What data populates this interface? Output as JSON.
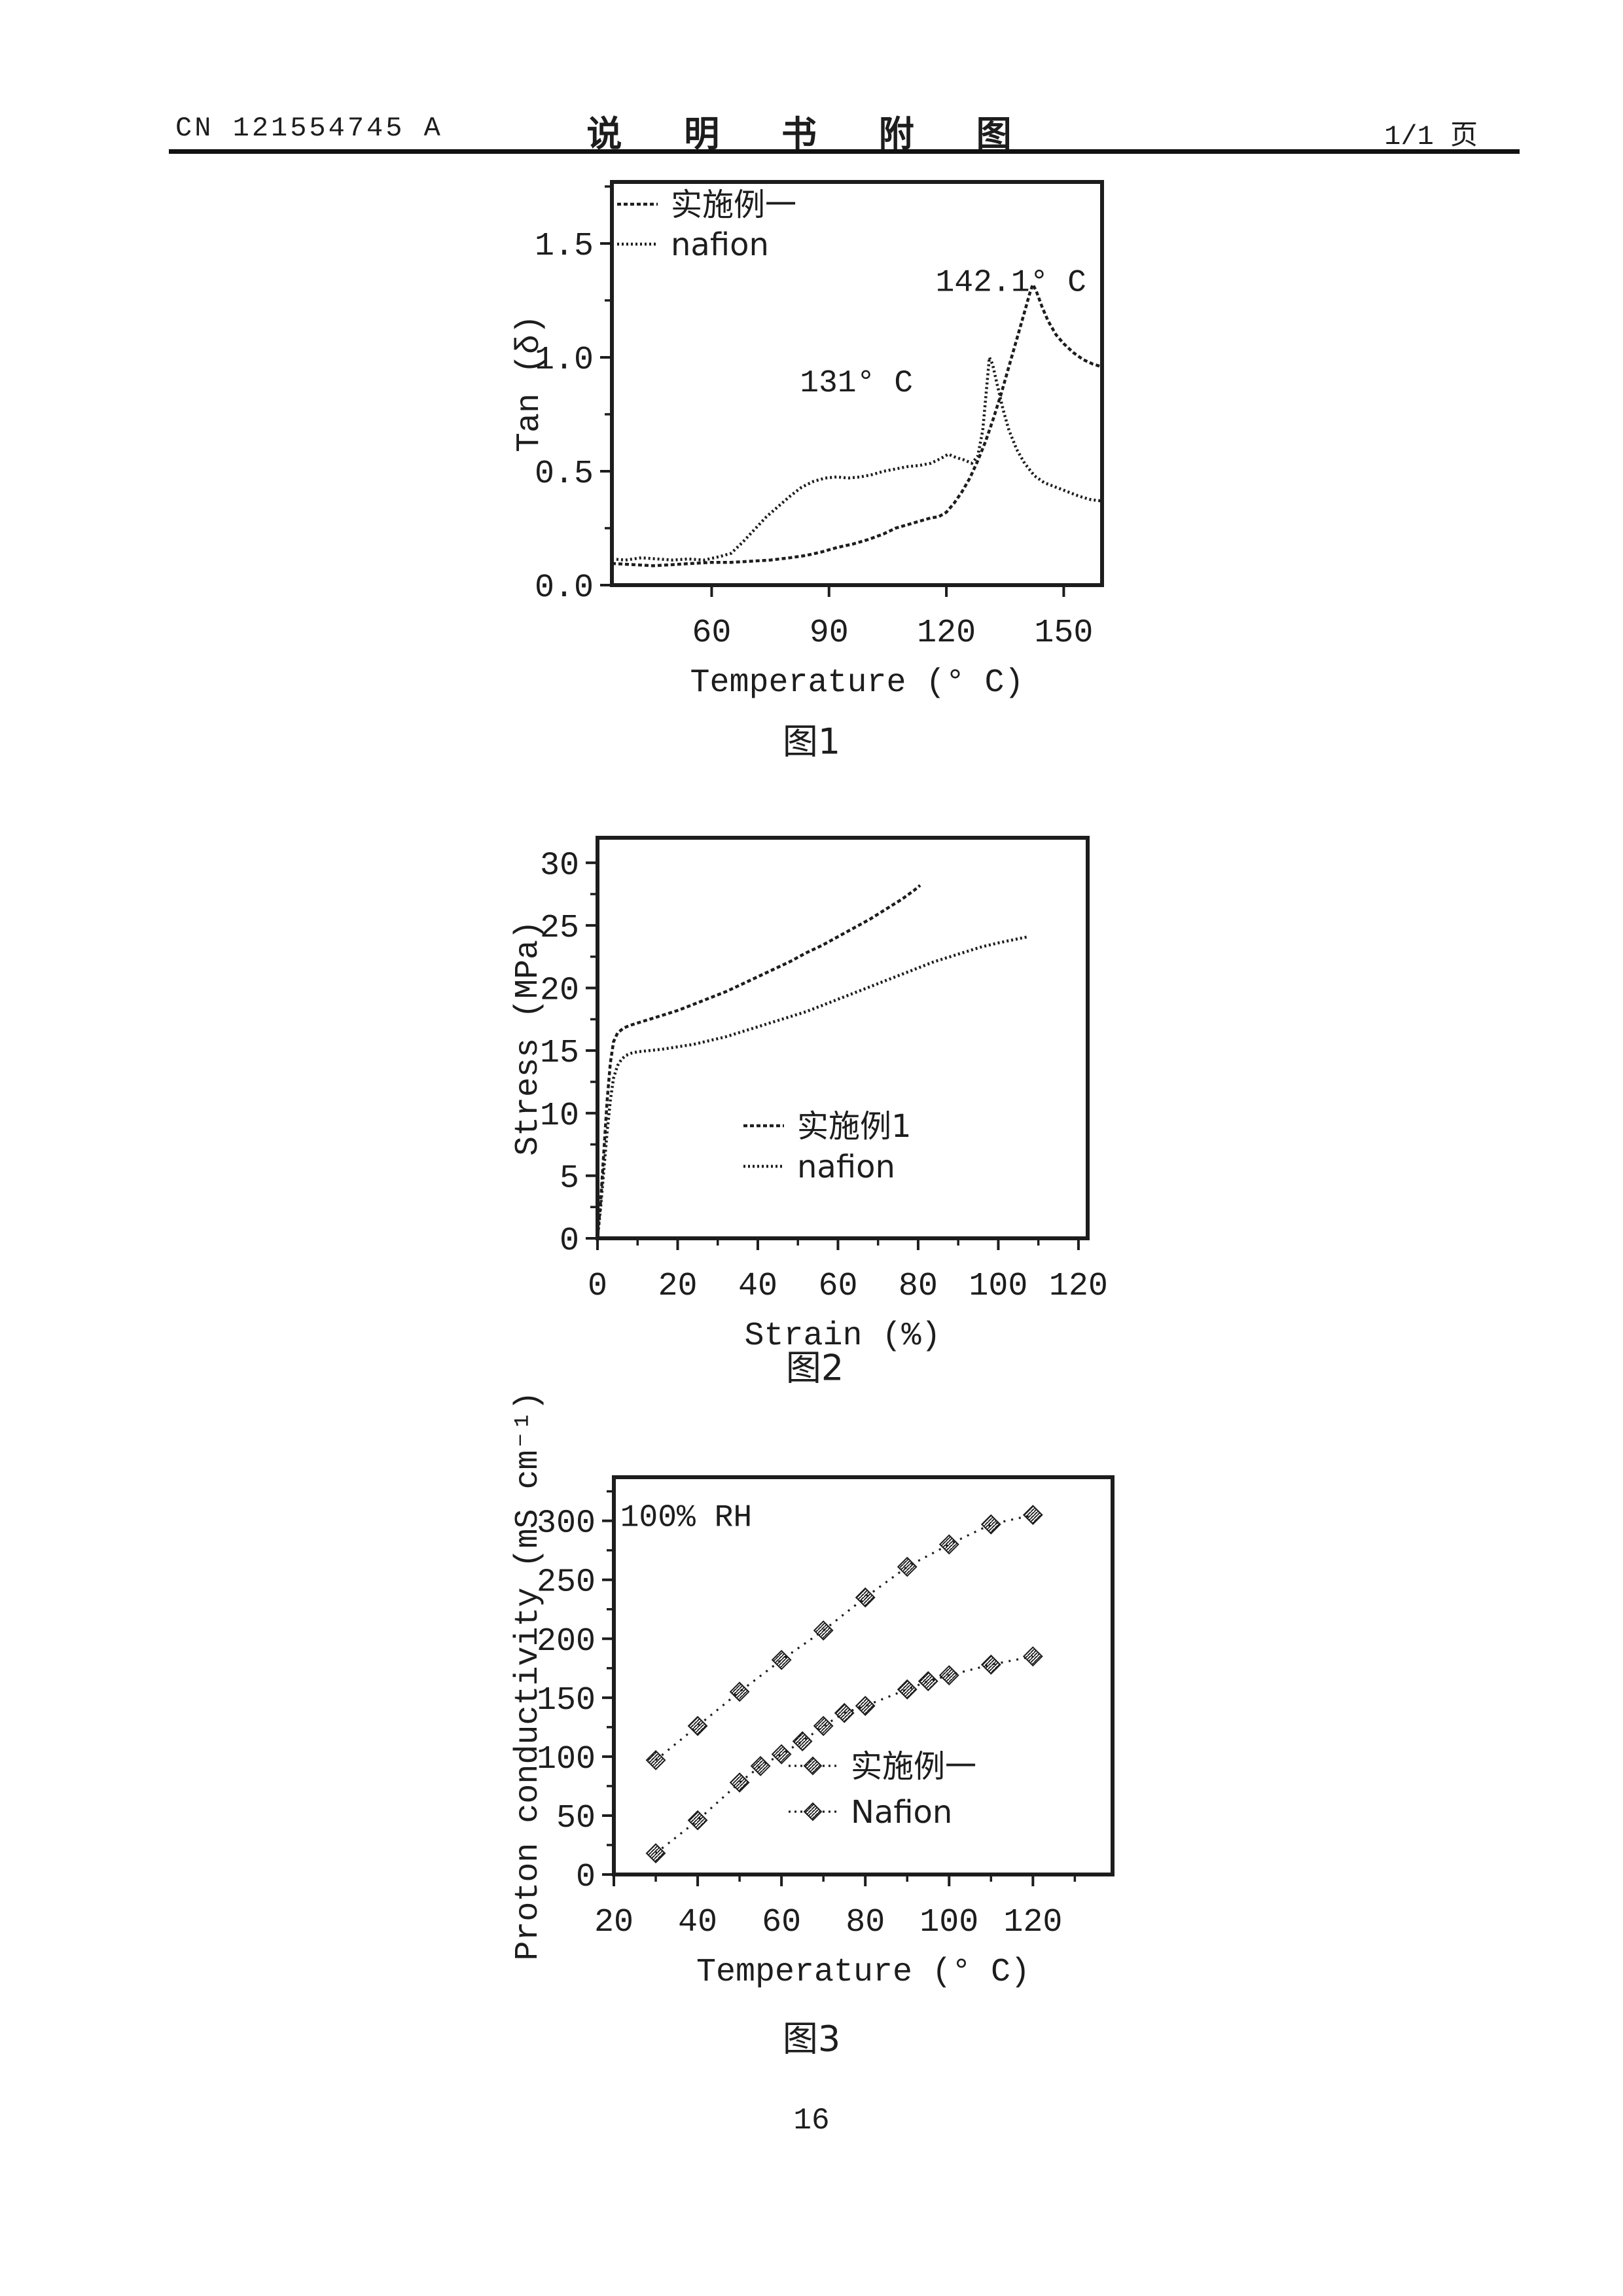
{
  "header": {
    "doc_number": "CN 121554745 A",
    "title": "说 明 书 附 图",
    "page_indicator": "1/1 页"
  },
  "figures": [
    {
      "caption": "图1"
    },
    {
      "caption": "图2"
    },
    {
      "caption": "图3"
    }
  ],
  "page_number": "16",
  "ink_color": "#1d1d1d",
  "chart_data": [
    {
      "id": "fig1",
      "type": "line",
      "title": "",
      "xlabel": "Temperature (° C)",
      "ylabel": "Tan (δ)",
      "xlim": [
        34.5,
        159.8
      ],
      "ylim": [
        0,
        1.77
      ],
      "xticks": [
        {
          "v": 60,
          "label": "60"
        },
        {
          "v": 90,
          "label": "90"
        },
        {
          "v": 120,
          "label": "120"
        },
        {
          "v": 150,
          "label": "150"
        }
      ],
      "yticks": [
        {
          "v": 0,
          "label": "0.0"
        },
        {
          "v": 0.5,
          "label": "0.5"
        },
        {
          "v": 1.0,
          "label": "1.0"
        },
        {
          "v": 1.5,
          "label": "1.5"
        }
      ],
      "xminor": [],
      "yminor": [
        0.25,
        0.75,
        1.25,
        1.75
      ],
      "grid": false,
      "legend_position": "top-left-inside",
      "legend": [
        {
          "label": "实施例一",
          "series": 0
        },
        {
          "label": "nafion",
          "series": 1
        }
      ],
      "annotations": [
        {
          "text": "142.1° C",
          "x": 136.5,
          "y": 1.34,
          "anchor": "middle"
        },
        {
          "text": "131° C",
          "x": 97,
          "y": 0.9,
          "anchor": "middle"
        }
      ],
      "series": [
        {
          "name": "实施例一",
          "style": "dots-a",
          "peak_label": "142.1° C",
          "points": [
            [
              34.5,
              0.095
            ],
            [
              40,
              0.09
            ],
            [
              45,
              0.085
            ],
            [
              50,
              0.09
            ],
            [
              55,
              0.095
            ],
            [
              60,
              0.1
            ],
            [
              65,
              0.1
            ],
            [
              70,
              0.105
            ],
            [
              75,
              0.11
            ],
            [
              80,
              0.12
            ],
            [
              84,
              0.13
            ],
            [
              88,
              0.145
            ],
            [
              92,
              0.165
            ],
            [
              96,
              0.18
            ],
            [
              100,
              0.2
            ],
            [
              104,
              0.225
            ],
            [
              107,
              0.25
            ],
            [
              110,
              0.265
            ],
            [
              113,
              0.28
            ],
            [
              116,
              0.295
            ],
            [
              118,
              0.3
            ],
            [
              120,
              0.32
            ],
            [
              122,
              0.36
            ],
            [
              124,
              0.41
            ],
            [
              126,
              0.47
            ],
            [
              128,
              0.545
            ],
            [
              130,
              0.63
            ],
            [
              132,
              0.73
            ],
            [
              134,
              0.84
            ],
            [
              136,
              0.96
            ],
            [
              138,
              1.08
            ],
            [
              140,
              1.2
            ],
            [
              141.3,
              1.28
            ],
            [
              142.1,
              1.32
            ],
            [
              143,
              1.29
            ],
            [
              144.5,
              1.22
            ],
            [
              146,
              1.16
            ],
            [
              148,
              1.1
            ],
            [
              150,
              1.06
            ],
            [
              152.5,
              1.02
            ],
            [
              155,
              0.99
            ],
            [
              157.5,
              0.97
            ],
            [
              159.5,
              0.96
            ]
          ]
        },
        {
          "name": "nafion",
          "style": "dots-b",
          "peak_label": "131° C",
          "points": [
            [
              34.5,
              0.115
            ],
            [
              38,
              0.11
            ],
            [
              42,
              0.12
            ],
            [
              46,
              0.115
            ],
            [
              50,
              0.11
            ],
            [
              54,
              0.115
            ],
            [
              58,
              0.11
            ],
            [
              62,
              0.125
            ],
            [
              65,
              0.14
            ],
            [
              68,
              0.19
            ],
            [
              71,
              0.245
            ],
            [
              74,
              0.3
            ],
            [
              77,
              0.345
            ],
            [
              80,
              0.39
            ],
            [
              83,
              0.43
            ],
            [
              86,
              0.455
            ],
            [
              89,
              0.47
            ],
            [
              92,
              0.475
            ],
            [
              95,
              0.47
            ],
            [
              98,
              0.475
            ],
            [
              101,
              0.485
            ],
            [
              104,
              0.5
            ],
            [
              107,
              0.51
            ],
            [
              110,
              0.52
            ],
            [
              113,
              0.525
            ],
            [
              116,
              0.535
            ],
            [
              118.5,
              0.555
            ],
            [
              120.5,
              0.575
            ],
            [
              122.5,
              0.56
            ],
            [
              124.5,
              0.55
            ],
            [
              126.5,
              0.535
            ],
            [
              128,
              0.565
            ],
            [
              129.3,
              0.68
            ],
            [
              130.2,
              0.85
            ],
            [
              131,
              1.0
            ],
            [
              131.8,
              0.97
            ],
            [
              133,
              0.88
            ],
            [
              134.5,
              0.77
            ],
            [
              136,
              0.68
            ],
            [
              138,
              0.595
            ],
            [
              140,
              0.535
            ],
            [
              142.5,
              0.48
            ],
            [
              145,
              0.45
            ],
            [
              148,
              0.43
            ],
            [
              151,
              0.41
            ],
            [
              154,
              0.39
            ],
            [
              157,
              0.375
            ],
            [
              159.5,
              0.37
            ]
          ]
        }
      ]
    },
    {
      "id": "fig2",
      "type": "line",
      "title": "",
      "xlabel": "Strain (%)",
      "ylabel": "Stress (MPa)",
      "xlim": [
        0,
        122.3
      ],
      "ylim": [
        0,
        32
      ],
      "xticks": [
        {
          "v": 0,
          "label": "0"
        },
        {
          "v": 20,
          "label": "20"
        },
        {
          "v": 40,
          "label": "40"
        },
        {
          "v": 60,
          "label": "60"
        },
        {
          "v": 80,
          "label": "80"
        },
        {
          "v": 100,
          "label": "100"
        },
        {
          "v": 120,
          "label": "120"
        }
      ],
      "yticks": [
        {
          "v": 0,
          "label": "0"
        },
        {
          "v": 5,
          "label": "5"
        },
        {
          "v": 10,
          "label": "10"
        },
        {
          "v": 15,
          "label": "15"
        },
        {
          "v": 20,
          "label": "20"
        },
        {
          "v": 25,
          "label": "25"
        },
        {
          "v": 30,
          "label": "30"
        }
      ],
      "xminor": [
        10,
        30,
        50,
        70,
        90,
        110
      ],
      "yminor": [
        2.5,
        7.5,
        12.5,
        17.5,
        22.5,
        27.5
      ],
      "grid": false,
      "legend_position": "center-inside",
      "legend": [
        {
          "label": "实施例1",
          "series": 0
        },
        {
          "label": "nafion",
          "series": 1
        }
      ],
      "annotations": [],
      "series": [
        {
          "name": "实施例1",
          "style": "dots-a",
          "points": [
            [
              0,
              0
            ],
            [
              0.8,
              3
            ],
            [
              1.6,
              7
            ],
            [
              2.4,
              11
            ],
            [
              3.2,
              14
            ],
            [
              4,
              15.7
            ],
            [
              5,
              16.4
            ],
            [
              6.5,
              16.8
            ],
            [
              8,
              17.0
            ],
            [
              10,
              17.2
            ],
            [
              13,
              17.5
            ],
            [
              16,
              17.8
            ],
            [
              20,
              18.2
            ],
            [
              24,
              18.7
            ],
            [
              28,
              19.2
            ],
            [
              32,
              19.7
            ],
            [
              36,
              20.3
            ],
            [
              40,
              20.9
            ],
            [
              44,
              21.5
            ],
            [
              48,
              22.1
            ],
            [
              52,
              22.8
            ],
            [
              56,
              23.4
            ],
            [
              60,
              24.1
            ],
            [
              64,
              24.8
            ],
            [
              68,
              25.5
            ],
            [
              72,
              26.3
            ],
            [
              76,
              27.1
            ],
            [
              79,
              27.8
            ],
            [
              80.5,
              28.2
            ]
          ]
        },
        {
          "name": "nafion",
          "style": "dots-b",
          "points": [
            [
              0,
              0
            ],
            [
              0.8,
              2.5
            ],
            [
              1.6,
              5.5
            ],
            [
              2.4,
              8.5
            ],
            [
              3.2,
              11
            ],
            [
              4,
              12.8
            ],
            [
              5,
              13.8
            ],
            [
              6,
              14.3
            ],
            [
              7,
              14.6
            ],
            [
              8.5,
              14.8
            ],
            [
              10,
              14.9
            ],
            [
              13,
              15.0
            ],
            [
              16,
              15.1
            ],
            [
              20,
              15.3
            ],
            [
              24,
              15.5
            ],
            [
              28,
              15.8
            ],
            [
              32,
              16.1
            ],
            [
              36,
              16.5
            ],
            [
              40,
              16.9
            ],
            [
              44,
              17.3
            ],
            [
              48,
              17.7
            ],
            [
              52,
              18.1
            ],
            [
              56,
              18.6
            ],
            [
              60,
              19.1
            ],
            [
              64,
              19.6
            ],
            [
              68,
              20.1
            ],
            [
              72,
              20.6
            ],
            [
              76,
              21.1
            ],
            [
              80,
              21.6
            ],
            [
              84,
              22.1
            ],
            [
              88,
              22.5
            ],
            [
              92,
              22.9
            ],
            [
              96,
              23.3
            ],
            [
              100,
              23.6
            ],
            [
              103,
              23.8
            ],
            [
              106,
              24.0
            ],
            [
              107.5,
              24.1
            ]
          ]
        }
      ]
    },
    {
      "id": "fig3",
      "type": "scatter",
      "title": "",
      "xlabel": "Temperature (° C)",
      "ylabel": "Proton conductivity (mS cm⁻¹)",
      "xlim": [
        20,
        139
      ],
      "ylim": [
        0,
        337
      ],
      "xticks": [
        {
          "v": 20,
          "label": "20"
        },
        {
          "v": 40,
          "label": "40"
        },
        {
          "v": 60,
          "label": "60"
        },
        {
          "v": 80,
          "label": "80"
        },
        {
          "v": 100,
          "label": "100"
        },
        {
          "v": 120,
          "label": "120"
        }
      ],
      "yticks": [
        {
          "v": 0,
          "label": "0"
        },
        {
          "v": 50,
          "label": "50"
        },
        {
          "v": 100,
          "label": "100"
        },
        {
          "v": 150,
          "label": "150"
        },
        {
          "v": 200,
          "label": "200"
        },
        {
          "v": 250,
          "label": "250"
        },
        {
          "v": 300,
          "label": "300"
        }
      ],
      "xminor": [
        30,
        50,
        70,
        90,
        110,
        130
      ],
      "yminor": [
        25,
        75,
        125,
        175,
        225,
        275,
        325
      ],
      "grid": false,
      "legend_position": "right-middle-inside",
      "legend": [
        {
          "label": "实施例一",
          "series": 0
        },
        {
          "label": "Nafion",
          "series": 1
        }
      ],
      "annotations": [
        {
          "text": "100% RH",
          "x": 21.5,
          "y": 305,
          "anchor": "start"
        }
      ],
      "series": [
        {
          "name": "实施例一",
          "style": "dots-c",
          "marker": "diamond-hatch",
          "points": [
            [
              30,
              97
            ],
            [
              40,
              126
            ],
            [
              50,
              155
            ],
            [
              60,
              182
            ],
            [
              70,
              207
            ],
            [
              80,
              235
            ],
            [
              90,
              261
            ],
            [
              100,
              280
            ],
            [
              110,
              297
            ],
            [
              120,
              305
            ]
          ]
        },
        {
          "name": "Nafion",
          "style": "dots-c",
          "marker": "diamond-hatch",
          "points": [
            [
              30,
              18
            ],
            [
              40,
              46
            ],
            [
              50,
              78
            ],
            [
              55,
              92
            ],
            [
              60,
              102
            ],
            [
              65,
              113
            ],
            [
              70,
              126
            ],
            [
              75,
              137
            ],
            [
              80,
              143
            ],
            [
              90,
              157
            ],
            [
              95,
              164
            ],
            [
              100,
              169
            ],
            [
              110,
              178
            ],
            [
              120,
              185
            ]
          ]
        }
      ]
    }
  ]
}
